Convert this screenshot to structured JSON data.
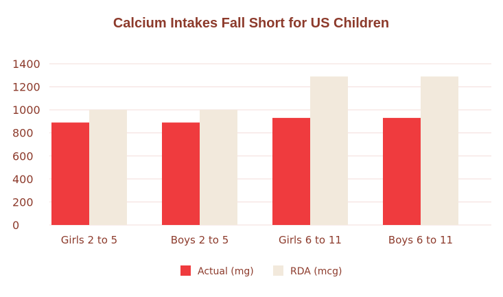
{
  "chart_data": {
    "type": "bar",
    "title": "Calcium Intakes Fall Short for US Children",
    "categories": [
      "Girls 2 to 5",
      "Boys 2 to 5",
      "Girls 6 to 11",
      "Boys 6 to 11"
    ],
    "series": [
      {
        "name": "Actual (mg)",
        "values": [
          890,
          890,
          930,
          930
        ],
        "color": "#ef3b3e"
      },
      {
        "name": "RDA (mcg)",
        "values": [
          1000,
          1000,
          1290,
          1290
        ],
        "color": "#f2e9dc"
      }
    ],
    "yticks": [
      "0",
      "200",
      "400",
      "600",
      "800",
      "1000",
      "1200",
      "1400"
    ],
    "ylim": [
      0,
      1400
    ],
    "grid": true,
    "legend_position": "bottom-center",
    "text_color": "#8c3a2b",
    "grid_color": "#f3dcd9"
  }
}
